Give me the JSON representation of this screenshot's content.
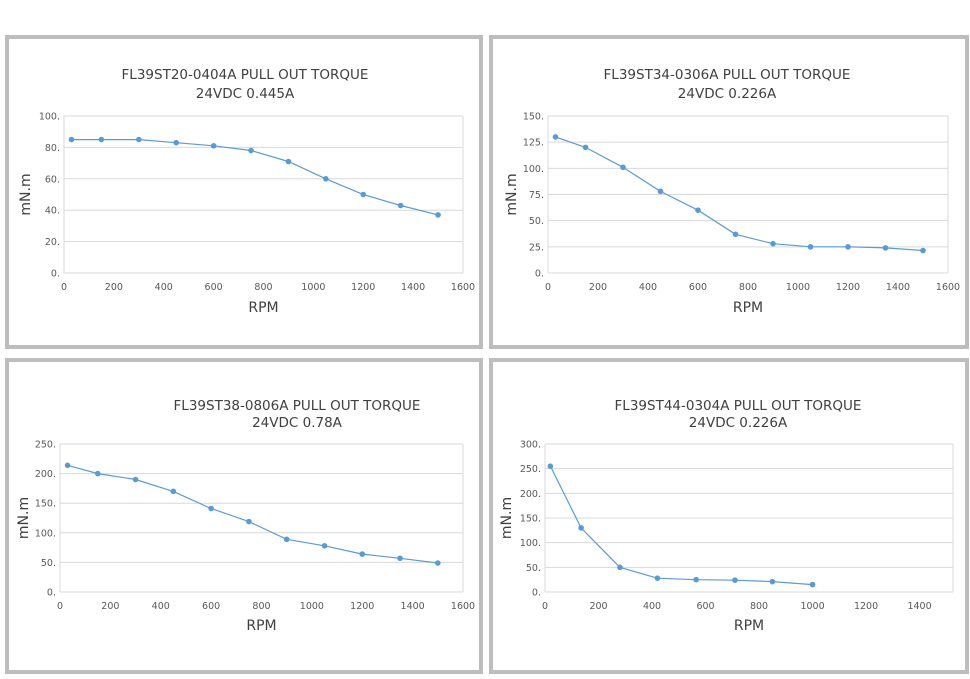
{
  "colors": {
    "line": "#5b9bd5",
    "grid": "#d9d9d9",
    "axis_text": "#595959",
    "title_text": "#404040",
    "border": "#bdbdbd"
  },
  "chart_data": [
    {
      "type": "line",
      "title": "FL39ST20-0404A   PULL OUT TORQUE",
      "subtitle": "24VDC    0.445A",
      "xlabel": "RPM",
      "ylabel": "mN.m",
      "xlim": [
        0,
        1600
      ],
      "ylim": [
        0,
        100
      ],
      "xticks": [
        0,
        200,
        400,
        600,
        800,
        1000,
        1200,
        1400,
        1600
      ],
      "yticks": [
        0,
        20,
        40,
        60,
        80,
        100
      ],
      "ytick_labels": [
        "0.",
        "20.",
        "40.",
        "60.",
        "80.",
        "100."
      ],
      "grid": true,
      "series": [
        {
          "name": "torque",
          "x": [
            30,
            150,
            300,
            450,
            600,
            750,
            900,
            1050,
            1200,
            1350,
            1500
          ],
          "y": [
            85,
            85,
            85,
            83,
            81,
            78,
            71,
            60,
            50,
            43,
            37
          ]
        }
      ]
    },
    {
      "type": "line",
      "title": "FL39ST34-0306A     PULL OUT TORQUE",
      "subtitle": "24VDC     0.226A",
      "xlabel": "RPM",
      "ylabel": "mN.m",
      "xlim": [
        0,
        1600
      ],
      "ylim": [
        0,
        150
      ],
      "xticks": [
        0,
        200,
        400,
        600,
        800,
        1000,
        1200,
        1400,
        1600
      ],
      "yticks": [
        0,
        25,
        50,
        75,
        100,
        125,
        150
      ],
      "ytick_labels": [
        "0.",
        "25.",
        "50.",
        "75.",
        "100.",
        "125.",
        "150."
      ],
      "grid": true,
      "series": [
        {
          "name": "torque",
          "x": [
            30,
            150,
            300,
            450,
            600,
            750,
            900,
            1050,
            1200,
            1350,
            1500
          ],
          "y": [
            130,
            120,
            101,
            78,
            60,
            37,
            28,
            25,
            25,
            24,
            21.5
          ]
        }
      ]
    },
    {
      "type": "line",
      "title": "FL39ST38-0806A     PULL OUT TORQUE",
      "subtitle": "24VDC     0.78A",
      "xlabel": "RPM",
      "ylabel": "mN.m",
      "xlim": [
        0,
        1600
      ],
      "ylim": [
        0,
        250
      ],
      "xticks": [
        0,
        200,
        400,
        600,
        800,
        1000,
        1200,
        1400,
        1600
      ],
      "yticks": [
        0,
        50,
        100,
        150,
        200,
        250
      ],
      "ytick_labels": [
        "0.",
        "50.",
        "100.",
        "150.",
        "200.",
        "250."
      ],
      "grid": true,
      "series": [
        {
          "name": "torque",
          "x": [
            30,
            150,
            300,
            450,
            600,
            750,
            900,
            1050,
            1200,
            1350,
            1500
          ],
          "y": [
            214,
            200,
            190,
            170,
            141,
            119,
            89,
            78,
            64,
            57,
            49
          ]
        }
      ]
    },
    {
      "type": "line",
      "title": "FL39ST44-0304A     PULL OUT TORQUE",
      "subtitle": "24VDC     0.226A",
      "xlabel": "RPM",
      "ylabel": "mN.m",
      "xlim": [
        0,
        1525
      ],
      "ylim": [
        0,
        300
      ],
      "xticks": [
        0,
        200,
        400,
        600,
        800,
        1000,
        1200,
        1400
      ],
      "yticks": [
        0,
        50,
        100,
        150,
        200,
        250,
        300
      ],
      "ytick_labels": [
        "0.",
        "50.",
        "100.",
        "150.",
        "200.",
        "250.",
        "300."
      ],
      "grid": true,
      "series": [
        {
          "name": "torque",
          "x": [
            20,
            135,
            280,
            420,
            565,
            710,
            850,
            1000
          ],
          "y": [
            255,
            130,
            50,
            28,
            25,
            24,
            21,
            15
          ]
        }
      ]
    }
  ]
}
